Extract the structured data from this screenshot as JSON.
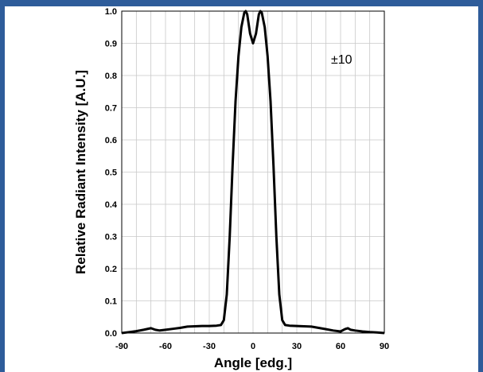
{
  "chart_data": {
    "type": "line",
    "title": "",
    "xlabel": "Angle [edg.]",
    "ylabel": "Relative Radiant Intensity [A.U.]",
    "annotation": "±10",
    "xlim": [
      -90,
      90
    ],
    "ylim": [
      0,
      1.0
    ],
    "xticks": [
      -90,
      -60,
      -30,
      0,
      30,
      60,
      90
    ],
    "yticks": [
      "0.0",
      "0.1",
      "0.2",
      "0.3",
      "0.4",
      "0.5",
      "0.6",
      "0.7",
      "0.8",
      "0.9",
      "1.0"
    ],
    "grid": true,
    "series": [
      {
        "color": "#000000",
        "x": [
          -90,
          -85,
          -80,
          -75,
          -70,
          -67,
          -64,
          -60,
          -55,
          -50,
          -45,
          -40,
          -35,
          -30,
          -25,
          -22,
          -20,
          -18,
          -16,
          -14,
          -12,
          -10,
          -8,
          -6,
          -5,
          -4,
          -3,
          -2,
          0,
          2,
          3,
          4,
          5,
          6,
          8,
          10,
          12,
          14,
          16,
          18,
          20,
          22,
          25,
          30,
          35,
          40,
          45,
          50,
          55,
          60,
          63,
          65,
          67,
          70,
          75,
          80,
          85,
          90
        ],
        "y": [
          0.0,
          0.003,
          0.006,
          0.01,
          0.015,
          0.01,
          0.008,
          0.01,
          0.013,
          0.016,
          0.02,
          0.021,
          0.022,
          0.022,
          0.023,
          0.025,
          0.04,
          0.12,
          0.3,
          0.52,
          0.72,
          0.86,
          0.95,
          0.995,
          1.0,
          0.99,
          0.96,
          0.93,
          0.9,
          0.93,
          0.96,
          0.99,
          1.0,
          0.995,
          0.95,
          0.86,
          0.72,
          0.52,
          0.3,
          0.12,
          0.04,
          0.025,
          0.023,
          0.022,
          0.021,
          0.02,
          0.016,
          0.012,
          0.008,
          0.005,
          0.012,
          0.015,
          0.01,
          0.008,
          0.005,
          0.003,
          0.002,
          0.0
        ]
      }
    ]
  }
}
